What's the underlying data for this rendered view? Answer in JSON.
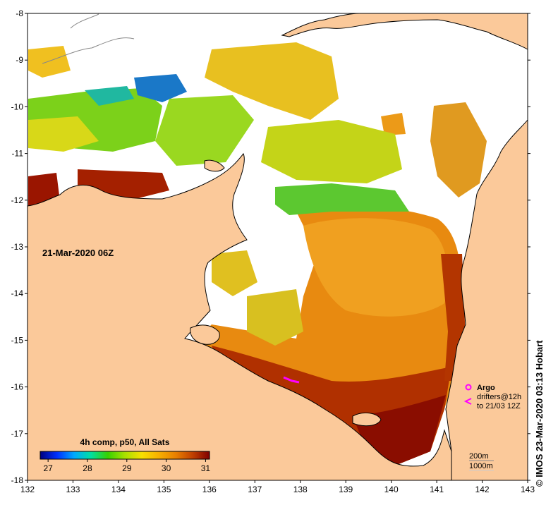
{
  "map": {
    "date_label": "21-Mar-2020 06Z",
    "credit": "© IMOS 23-Mar-2020 03:13 Hobart",
    "lon_ticks": [
      "132",
      "133",
      "134",
      "135",
      "136",
      "137",
      "138",
      "139",
      "140",
      "141",
      "142",
      "143"
    ],
    "lat_ticks": [
      "-8",
      "-9",
      "-10",
      "-11",
      "-12",
      "-13",
      "-14",
      "-15",
      "-16",
      "-17",
      "-18"
    ],
    "colors": {
      "land": "#fbc99a",
      "no_data": "#ffffff",
      "coast": "#000000",
      "argo": "#ff00ff",
      "drifter": "#ff00ff"
    }
  },
  "colorbar": {
    "title": "4h comp, p50, All Sats",
    "tick_labels": [
      "27",
      "28",
      "29",
      "30",
      "31"
    ],
    "min": 26.8,
    "max": 31.1,
    "stops": [
      "#00007f",
      "#0030ff",
      "#00a8ff",
      "#00e0a0",
      "#38d000",
      "#a8e000",
      "#f8e000",
      "#f8b000",
      "#e88000",
      "#c04000",
      "#800000"
    ]
  },
  "legend": {
    "argo_label": "Argo",
    "drifters_label": "drifters@12h",
    "drifters_to": "to 21/03 12Z",
    "contour_200": "200m",
    "contour_1000": "1000m"
  }
}
